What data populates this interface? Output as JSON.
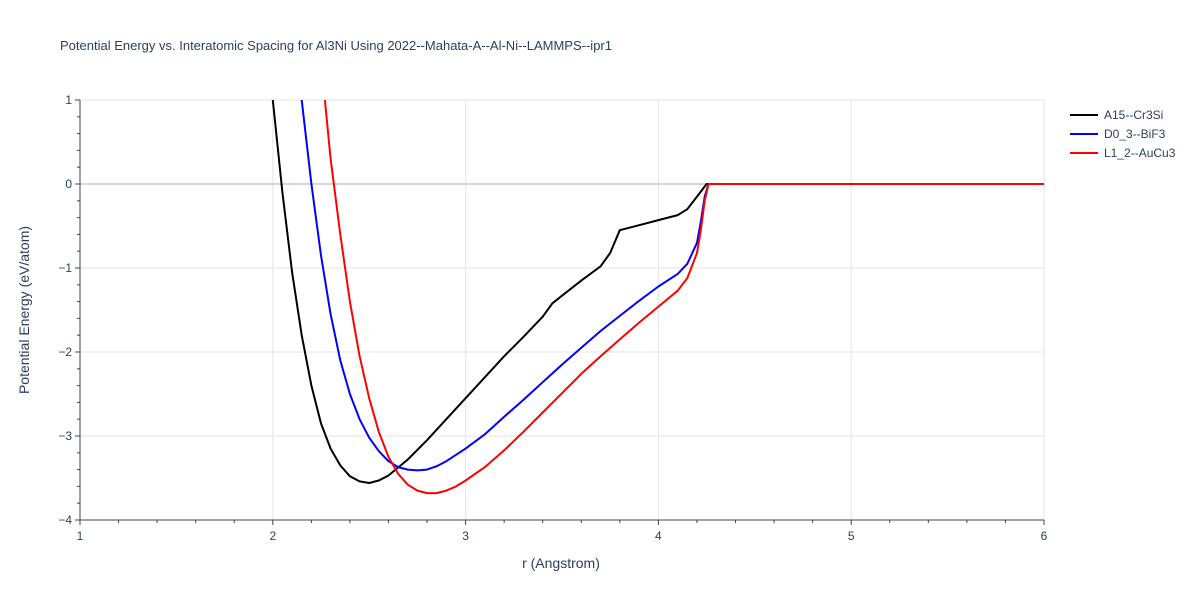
{
  "chart_data": {
    "type": "line",
    "title": "Potential Energy vs. Interatomic Spacing for Al3Ni Using 2022--Mahata-A--Al-Ni--LAMMPS--ipr1",
    "xlabel": "r (Angstrom)",
    "ylabel": "Potential Energy (eV/atom)",
    "xlim": [
      1,
      6
    ],
    "ylim": [
      -4,
      1
    ],
    "xticks": [
      1,
      2,
      3,
      4,
      5,
      6
    ],
    "yticks": [
      -4,
      -3,
      -2,
      -1,
      0,
      1
    ],
    "xtick_labels": [
      "1",
      "2",
      "3",
      "4",
      "5",
      "6"
    ],
    "ytick_labels": [
      "−4",
      "−3",
      "−2",
      "−1",
      "0",
      "1"
    ],
    "grid": true,
    "legend_position": "top-right",
    "series": [
      {
        "name": "A15--Cr3Si",
        "color": "#000000",
        "x": [
          2.0,
          2.05,
          2.1,
          2.15,
          2.2,
          2.25,
          2.3,
          2.35,
          2.4,
          2.45,
          2.5,
          2.55,
          2.6,
          2.7,
          2.8,
          2.9,
          3.0,
          3.1,
          3.2,
          3.3,
          3.4,
          3.45,
          3.5,
          3.6,
          3.7,
          3.75,
          3.8,
          3.9,
          4.0,
          4.1,
          4.15,
          4.2,
          4.25,
          4.3,
          4.5,
          5.0,
          5.5,
          6.0
        ],
        "y": [
          1.0,
          -0.1,
          -1.05,
          -1.8,
          -2.4,
          -2.85,
          -3.15,
          -3.35,
          -3.48,
          -3.54,
          -3.56,
          -3.53,
          -3.47,
          -3.28,
          -3.05,
          -2.8,
          -2.55,
          -2.3,
          -2.05,
          -1.82,
          -1.58,
          -1.42,
          -1.33,
          -1.15,
          -0.98,
          -0.82,
          -0.55,
          -0.49,
          -0.43,
          -0.37,
          -0.3,
          -0.15,
          0.0,
          0.0,
          0.0,
          0.0,
          0.0,
          0.0
        ]
      },
      {
        "name": "D0_3--BiF3",
        "color": "#0000ff",
        "x": [
          2.15,
          2.2,
          2.25,
          2.3,
          2.35,
          2.4,
          2.45,
          2.5,
          2.55,
          2.6,
          2.65,
          2.7,
          2.75,
          2.8,
          2.85,
          2.9,
          3.0,
          3.1,
          3.2,
          3.3,
          3.4,
          3.5,
          3.6,
          3.7,
          3.8,
          3.9,
          4.0,
          4.1,
          4.15,
          4.2,
          4.22,
          4.24,
          4.26,
          4.3,
          4.5,
          5.0,
          5.5,
          6.0
        ],
        "y": [
          1.0,
          0.0,
          -0.85,
          -1.55,
          -2.1,
          -2.5,
          -2.8,
          -3.02,
          -3.18,
          -3.3,
          -3.37,
          -3.4,
          -3.41,
          -3.4,
          -3.36,
          -3.3,
          -3.15,
          -2.98,
          -2.77,
          -2.57,
          -2.36,
          -2.15,
          -1.95,
          -1.75,
          -1.57,
          -1.39,
          -1.22,
          -1.07,
          -0.95,
          -0.7,
          -0.45,
          -0.15,
          0.0,
          0.0,
          0.0,
          0.0,
          0.0,
          0.0
        ]
      },
      {
        "name": "L1_2--AuCu3",
        "color": "#ff0000",
        "x": [
          2.27,
          2.3,
          2.35,
          2.4,
          2.45,
          2.5,
          2.55,
          2.6,
          2.65,
          2.7,
          2.75,
          2.8,
          2.85,
          2.9,
          2.95,
          3.0,
          3.1,
          3.2,
          3.3,
          3.4,
          3.5,
          3.6,
          3.7,
          3.8,
          3.9,
          4.0,
          4.1,
          4.15,
          4.2,
          4.22,
          4.24,
          4.26,
          4.3,
          4.5,
          5.0,
          5.5,
          6.0
        ],
        "y": [
          1.0,
          0.3,
          -0.6,
          -1.4,
          -2.05,
          -2.55,
          -2.95,
          -3.25,
          -3.45,
          -3.58,
          -3.65,
          -3.68,
          -3.68,
          -3.65,
          -3.6,
          -3.53,
          -3.37,
          -3.17,
          -2.95,
          -2.72,
          -2.49,
          -2.26,
          -2.05,
          -1.85,
          -1.65,
          -1.46,
          -1.27,
          -1.12,
          -0.82,
          -0.55,
          -0.2,
          0.0,
          0.0,
          0.0,
          0.0,
          0.0,
          0.0
        ]
      }
    ]
  }
}
